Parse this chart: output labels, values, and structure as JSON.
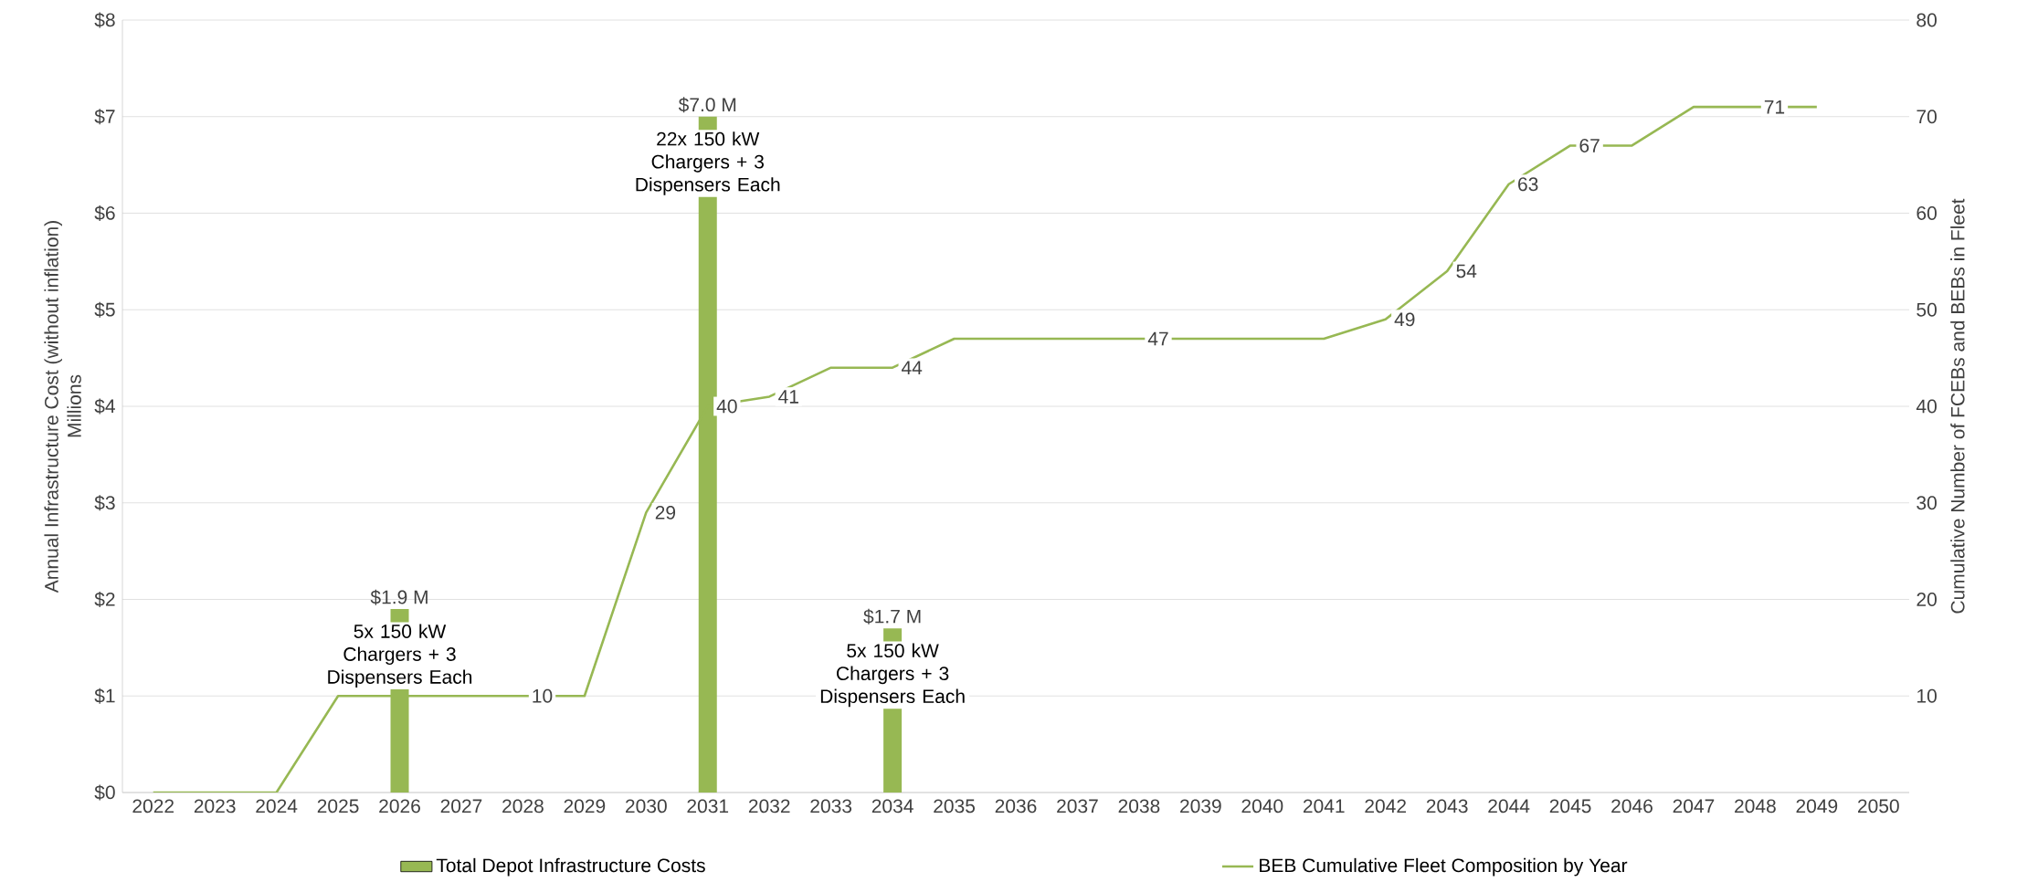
{
  "chart_data": {
    "type": "bar",
    "categories": [
      "2022",
      "2023",
      "2024",
      "2025",
      "2026",
      "2027",
      "2028",
      "2029",
      "2030",
      "2031",
      "2032",
      "2033",
      "2034",
      "2035",
      "2036",
      "2037",
      "2038",
      "2039",
      "2040",
      "2041",
      "2042",
      "2043",
      "2044",
      "2045",
      "2046",
      "2047",
      "2048",
      "2049",
      "2050"
    ],
    "ylabel": "Annual Infrastructure Cost (without inflation)",
    "y2label": "Cumulative Number of FCEBs and BEBs in Fleet",
    "ylim": [
      0,
      8
    ],
    "yticks": [
      {
        "value": 0,
        "label": "$0"
      },
      {
        "value": 1,
        "label": "$1"
      },
      {
        "value": 2,
        "label": "$2"
      },
      {
        "value": 3,
        "label": "$3"
      },
      {
        "value": 4,
        "label": "$4"
      },
      {
        "value": 5,
        "label": "$5"
      },
      {
        "value": 6,
        "label": "$6"
      },
      {
        "value": 7,
        "label": "$7"
      },
      {
        "value": 8,
        "label": "$8"
      }
    ],
    "y2lim": [
      0,
      80
    ],
    "y2ticks": [
      {
        "value": 0,
        "label": null
      },
      10,
      20,
      30,
      40,
      50,
      60,
      70,
      80
    ],
    "grid": "y",
    "legend": "bottom",
    "series": [
      {
        "name": "Total Depot Infrastructure Costs",
        "color": "#97b853",
        "values": [
          null,
          null,
          null,
          null,
          1.9,
          null,
          null,
          null,
          null,
          7.0,
          null,
          null,
          1.7,
          null,
          null,
          null,
          null,
          null,
          null,
          null,
          null,
          null,
          null,
          null,
          null,
          null,
          null,
          null,
          null
        ],
        "value_labels": [
          null,
          null,
          null,
          null,
          "$1.9 M",
          null,
          null,
          null,
          null,
          "$7.0 M",
          null,
          null,
          "$1.7 M",
          null,
          null,
          null,
          null,
          null,
          null,
          null,
          null,
          null,
          null,
          null,
          null,
          null,
          null,
          null,
          null
        ]
      },
      {
        "type": "line",
        "name": "BEB Cumulative Fleet Composition by Year",
        "color": "#97b853",
        "axis": "y2",
        "values": [
          0,
          0,
          0,
          10,
          10,
          10,
          10,
          10,
          29,
          40,
          41,
          44,
          44,
          47,
          47,
          47,
          47,
          47,
          47,
          47,
          49,
          54,
          63,
          67,
          67,
          71,
          71,
          71,
          null
        ],
        "value_labels": [
          null,
          null,
          null,
          null,
          null,
          null,
          "10",
          null,
          "29",
          "40",
          "41",
          null,
          "44",
          null,
          null,
          null,
          "47",
          null,
          null,
          null,
          "49",
          "54",
          "63",
          "67",
          null,
          null,
          "71",
          null,
          null
        ]
      }
    ],
    "annotations": [
      "Millions",
      "5x 150 kW Chargers + 3 Dispensers Each",
      "22x 150 kW Chargers + 3 Dispensers Each",
      "5x 150 kW Chargers + 3 Dispensers Each"
    ]
  }
}
